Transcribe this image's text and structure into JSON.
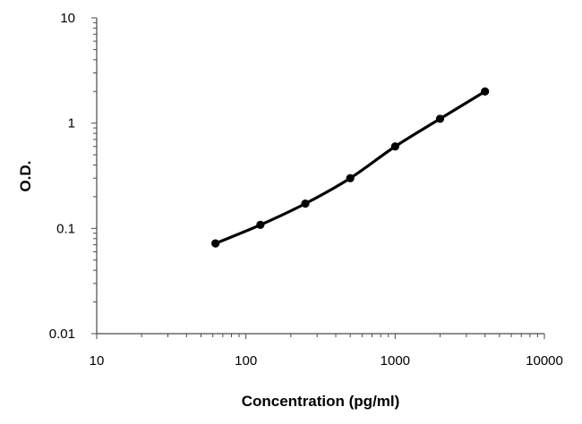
{
  "chart_data": {
    "type": "line",
    "title": "",
    "xlabel": "Concentration (pg/ml)",
    "ylabel": "O.D.",
    "x_scale": "log",
    "y_scale": "log",
    "xlim": [
      10,
      10000
    ],
    "ylim": [
      0.01,
      10
    ],
    "x_ticks": [
      "10",
      "100",
      "1000",
      "10000"
    ],
    "y_ticks": [
      "0.01",
      "0.1",
      "1",
      "10"
    ],
    "grid": false,
    "legend": "none",
    "line_color": "#000000",
    "series": [
      {
        "x": [
          62.5,
          125,
          250,
          500,
          1000,
          2000,
          4000
        ],
        "y": [
          0.072,
          0.108,
          0.172,
          0.3,
          0.6,
          1.1,
          2.0
        ]
      }
    ]
  }
}
